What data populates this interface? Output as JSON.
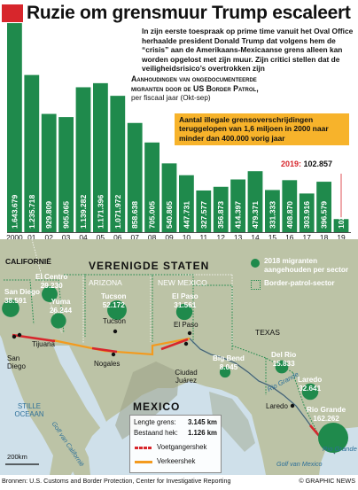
{
  "headline": "Ruzie om grensmuur Trump escaleert",
  "intro": "In zijn eerste toespraak op prime time vanuit het Oval Office herhaalde president Donald Trump dat volgens hem de “crisis” aan de Amerikaans-Mexicaanse grens alleen kan worden opgelost met zijn muur. Zijn critici stellen dat de veiligheidsrisico’s overtrokken zijn",
  "chart_subtitle": {
    "line1": "Aanhoudingen van ongedocumenteerde",
    "line2": "migranten door de US Border Patrol,",
    "line3": "per fiscaal jaar (Okt-sep)"
  },
  "callout": "Aantal illegale grensoverschrijdingen teruggelopen van 1,6 miljoen in 2000 naar minder dan 400.000 vorig jaar",
  "latest": {
    "label": "2019: ",
    "value": "102.857"
  },
  "colors": {
    "bar": "#1f8a4c",
    "bar_latest": "#1f8a4c",
    "accent": "#d7262c",
    "callout": "#f7b32b",
    "land": "#bcc3a6",
    "sea": "#cfe0ea",
    "border_fence": "#d7262c",
    "vehicle_fence": "#f39a1e"
  },
  "chart_data": {
    "type": "bar",
    "categories": [
      "2000",
      "01",
      "02",
      "03",
      "04",
      "05",
      "06",
      "07",
      "08",
      "09",
      "10",
      "11",
      "12",
      "13",
      "14",
      "15",
      "16",
      "17",
      "18",
      "19"
    ],
    "values": [
      1643679,
      1235718,
      929809,
      905065,
      1139282,
      1171396,
      1071972,
      858638,
      705005,
      540865,
      447731,
      327577,
      356873,
      414397,
      479371,
      331333,
      408870,
      303916,
      396579,
      102857
    ],
    "value_labels": [
      "1.643.679",
      "1.235.718",
      "929.809",
      "905.065",
      "1.139.282",
      "1.171.396",
      "1.071.972",
      "858.638",
      "705.005",
      "540.865",
      "447.731",
      "327.577",
      "356.873",
      "414.397",
      "479.371",
      "331.333",
      "408.870",
      "303.916",
      "396.579",
      "102.857"
    ],
    "title": "Aanhoudingen van ongedocumenteerde migranten door de US Border Patrol, per fiscaal jaar (Okt-sep)",
    "ylim": [
      0,
      1700000
    ],
    "grid": false,
    "legend": "none"
  },
  "map": {
    "labels": {
      "usa": "VERENIGDE STATEN",
      "mexico": "MEXICO",
      "california": "CALIFORNIË",
      "arizona": "ARIZONA",
      "new_mexico": "NEW MEXICO",
      "texas": "TEXAS",
      "pacific": "STILLE OCEAAN",
      "gulf_cal": "Golf van Californië",
      "gulf_mex": "Golf van Mexico",
      "rio_grande": "Rio Grande",
      "rio_grande2": "Rio Grande"
    },
    "sectors": [
      {
        "name": "San Diego",
        "value": "38.591",
        "value_num": 38591
      },
      {
        "name": "El Centro",
        "value": "29.230",
        "value_num": 29230
      },
      {
        "name": "Yuma",
        "value": "26.244",
        "value_num": 26244
      },
      {
        "name": "Tucson",
        "value": "52.172",
        "value_num": 52172
      },
      {
        "name": "El Paso",
        "value": "31.561",
        "value_num": 31561
      },
      {
        "name": "Big Bend",
        "value": "8.045",
        "value_num": 8045
      },
      {
        "name": "Del Rio",
        "value": "15.833",
        "value_num": 15833
      },
      {
        "name": "Laredo",
        "value": "32.641",
        "value_num": 32641
      },
      {
        "name": "Rio Grande",
        "value": "162.262",
        "value_num": 162262
      }
    ],
    "cities": [
      "San Diego",
      "Tijuana",
      "Tucson",
      "Nogales",
      "El Paso",
      "Ciudad Juárez",
      "Laredo"
    ],
    "key": {
      "migrants": "2018 migranten aangehouden per sector",
      "sector": "Border-patrol-sector"
    },
    "legend": {
      "length_label": "Lengte grens:",
      "length_value": "3.145 km",
      "fence_label": "Bestaand hek:",
      "fence_value": "1.126 km",
      "pedestrian": "Voetgangershek",
      "vehicle": "Verkeershek"
    },
    "scale": "200km"
  },
  "source": "Bronnen: U.S. Customs and Border Protection, Center for Investigative Reporting",
  "credit": "© GRAPHIC NEWS"
}
